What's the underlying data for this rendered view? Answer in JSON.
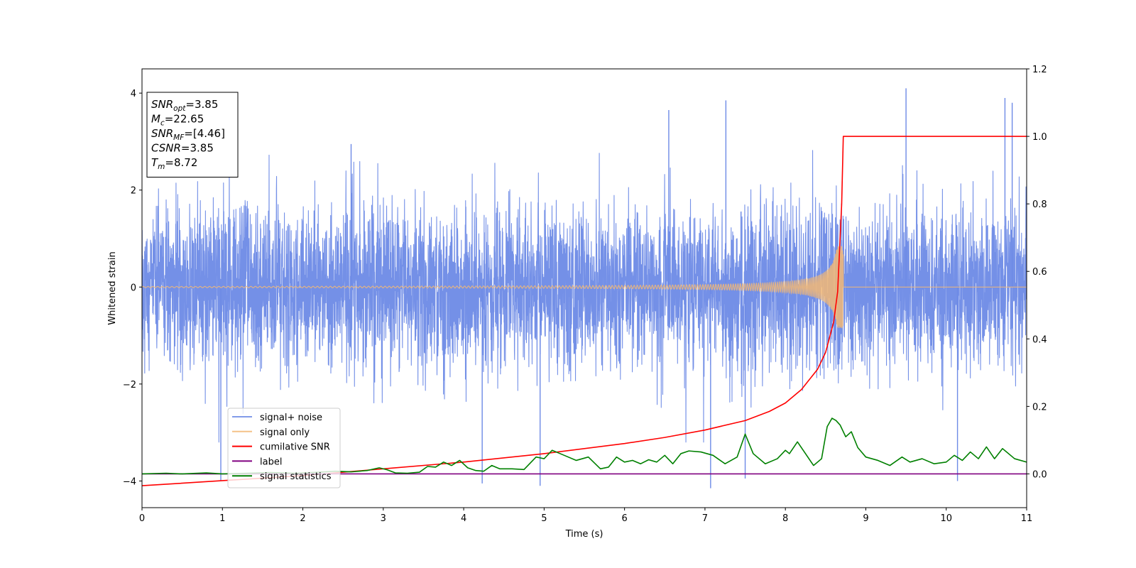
{
  "chart_data": {
    "type": "line",
    "xlabel": "Time (s)",
    "ylabel": "Whitened strain",
    "xlim": [
      0,
      11
    ],
    "ylim": [
      -4.55,
      4.5
    ],
    "ylim_right": [
      -0.1,
      1.2
    ],
    "x_ticks": [
      0,
      1,
      2,
      3,
      4,
      5,
      6,
      7,
      8,
      9,
      10,
      11
    ],
    "y_ticks": [
      -4,
      -2,
      0,
      2,
      4
    ],
    "y_ticks_right": [
      "0.0",
      "0.2",
      "0.4",
      "0.6",
      "0.8",
      "1.0",
      "1.2"
    ],
    "grid": false,
    "legend_position": "lower-left",
    "info_box": [
      {
        "sym": "SNR",
        "sub": "opt",
        "value": "=3.85"
      },
      {
        "sym": "M",
        "sub": "c",
        "value": "=22.65"
      },
      {
        "sym": "SNR",
        "sub": "MF",
        "value": "=[4.46]"
      },
      {
        "sym": "CSNR",
        "sub": "",
        "value": "=3.85"
      },
      {
        "sym": "T",
        "sub": "m",
        "value": "=8.72"
      }
    ],
    "series": [
      {
        "name": "signal+ noise",
        "axis": "left",
        "color": "#6d8ae6",
        "style": "noise",
        "sigma": 1.0,
        "note_visible_spikes": [
          [
            0.98,
            -4.0
          ],
          [
            2.6,
            2.95
          ],
          [
            4.23,
            -4.05
          ],
          [
            4.95,
            -4.1
          ],
          [
            6.55,
            3.65
          ],
          [
            7.07,
            -4.15
          ],
          [
            7.26,
            3.85
          ],
          [
            7.5,
            -3.95
          ],
          [
            9.5,
            4.1
          ],
          [
            10.14,
            -4.0
          ],
          [
            10.73,
            3.9
          ],
          [
            10.82,
            3.8
          ]
        ]
      },
      {
        "name": "signal only",
        "axis": "left",
        "color": "#f3b874",
        "style": "chirp",
        "t_merger": 8.72,
        "peak_amplitude": 0.85
      },
      {
        "name": "cumilative SNR",
        "axis": "right",
        "color": "#ff0000",
        "x": [
          0,
          1,
          2,
          3,
          4,
          5,
          6,
          6.5,
          7,
          7.5,
          7.8,
          8.0,
          8.2,
          8.4,
          8.5,
          8.6,
          8.65,
          8.7,
          8.72,
          8.75,
          11
        ],
        "y": [
          -0.035,
          -0.02,
          -0.005,
          0.015,
          0.035,
          0.06,
          0.09,
          0.108,
          0.13,
          0.158,
          0.185,
          0.21,
          0.25,
          0.31,
          0.36,
          0.45,
          0.54,
          0.8,
          1.0,
          1.0,
          1.0
        ]
      },
      {
        "name": "label",
        "axis": "right",
        "color": "#800080",
        "x": [
          0,
          11
        ],
        "y": [
          0.0,
          0.0
        ]
      },
      {
        "name": "signal statistics",
        "axis": "right",
        "color": "#008000",
        "x": [
          0.0,
          0.3,
          0.5,
          0.8,
          1.0,
          1.3,
          1.6,
          1.9,
          2.2,
          2.4,
          2.6,
          2.8,
          2.95,
          3.05,
          3.15,
          3.3,
          3.45,
          3.55,
          3.65,
          3.75,
          3.85,
          3.95,
          4.05,
          4.15,
          4.25,
          4.35,
          4.45,
          4.6,
          4.75,
          4.9,
          5.0,
          5.1,
          5.25,
          5.4,
          5.55,
          5.7,
          5.8,
          5.9,
          6.0,
          6.1,
          6.2,
          6.3,
          6.4,
          6.5,
          6.6,
          6.7,
          6.8,
          6.95,
          7.1,
          7.25,
          7.4,
          7.5,
          7.6,
          7.75,
          7.9,
          8.0,
          8.05,
          8.15,
          8.25,
          8.35,
          8.45,
          8.52,
          8.58,
          8.63,
          8.68,
          8.75,
          8.82,
          8.9,
          9.0,
          9.15,
          9.3,
          9.45,
          9.55,
          9.7,
          9.85,
          10.0,
          10.1,
          10.2,
          10.3,
          10.4,
          10.5,
          10.6,
          10.7,
          10.85,
          11.0
        ],
        "y": [
          0.0,
          0.002,
          0.0,
          0.003,
          0.0,
          0.002,
          0.004,
          0.002,
          0.005,
          0.008,
          0.006,
          0.01,
          0.018,
          0.012,
          0.003,
          0.002,
          0.005,
          0.022,
          0.02,
          0.035,
          0.025,
          0.04,
          0.018,
          0.01,
          0.008,
          0.025,
          0.015,
          0.015,
          0.013,
          0.05,
          0.045,
          0.07,
          0.055,
          0.04,
          0.05,
          0.015,
          0.02,
          0.05,
          0.035,
          0.04,
          0.03,
          0.042,
          0.035,
          0.055,
          0.03,
          0.06,
          0.068,
          0.065,
          0.055,
          0.03,
          0.05,
          0.118,
          0.06,
          0.03,
          0.045,
          0.07,
          0.06,
          0.095,
          0.06,
          0.025,
          0.045,
          0.14,
          0.165,
          0.158,
          0.145,
          0.11,
          0.125,
          0.078,
          0.05,
          0.04,
          0.025,
          0.05,
          0.035,
          0.045,
          0.03,
          0.035,
          0.055,
          0.04,
          0.065,
          0.045,
          0.08,
          0.045,
          0.075,
          0.045,
          0.035
        ]
      }
    ]
  }
}
